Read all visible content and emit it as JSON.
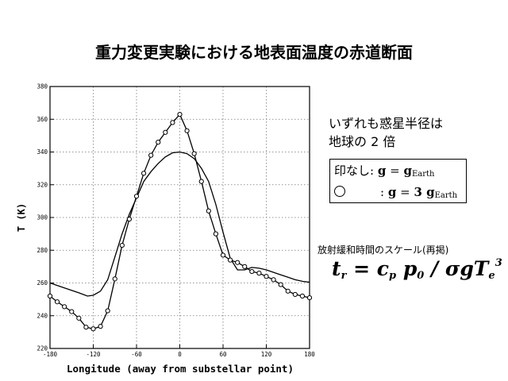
{
  "slide": {
    "title": "重力変更実験における地表面温度の赤道断面",
    "note_line1": "いずれも惑星半径は",
    "note_line2": "地球の 2 倍",
    "legend_row1_prefix": "印なし: ",
    "legend_row2_prefix": ": ",
    "legend_g": "g",
    "legend_eq": " = ",
    "legend_factor": "3 ",
    "legend_sub": "Earth",
    "timescale_caption": "放射緩和時間のスケール(再掲)",
    "formula_text": "t",
    "formula_sub_r": "r",
    "formula_eq": " = c",
    "formula_sub_p": "p",
    "formula_p": "p",
    "formula_sub_0": "0",
    "formula_rest": " / σgT",
    "formula_sub_e": "e",
    "formula_sup_3": "3"
  },
  "chart_data": {
    "type": "line",
    "title": "",
    "xlabel": "Longitude (away from substellar point)",
    "ylabel": "T (K)",
    "xlim": [
      -180,
      180
    ],
    "ylim": [
      220,
      380
    ],
    "xticks": [
      -180,
      -120,
      -60,
      0,
      60,
      120,
      180
    ],
    "yticks": [
      220,
      240,
      260,
      280,
      300,
      320,
      340,
      360,
      380
    ],
    "grid": true,
    "series": [
      {
        "name": "",
        "marker": "none",
        "x": [
          -180,
          -160,
          -140,
          -128,
          -120,
          -110,
          -100,
          -90,
          -80,
          -70,
          -60,
          -50,
          -40,
          -30,
          -20,
          -10,
          0,
          10,
          20,
          30,
          40,
          50,
          60,
          70,
          80,
          90,
          100,
          110,
          120,
          130,
          140,
          150,
          160,
          170,
          180
        ],
        "y": [
          260,
          257,
          254,
          252,
          252.5,
          255,
          262,
          276,
          290,
          302,
          312,
          322,
          328,
          333,
          337,
          339.5,
          340,
          339,
          336,
          330,
          322,
          308,
          291,
          275,
          268,
          268,
          269.5,
          269,
          268,
          266.5,
          265,
          263.5,
          262,
          261,
          260.5
        ]
      },
      {
        "name": "",
        "marker": "circle",
        "x": [
          -180,
          -170,
          -160,
          -150,
          -140,
          -130,
          -120,
          -110,
          -100,
          -90,
          -80,
          -70,
          -60,
          -50,
          -40,
          -30,
          -20,
          -10,
          0,
          10,
          20,
          30,
          40,
          50,
          60,
          70,
          80,
          90,
          100,
          110,
          120,
          130,
          140,
          150,
          160,
          170,
          180
        ],
        "y": [
          252,
          248.5,
          245.5,
          242.5,
          238.5,
          233,
          232,
          233.5,
          243,
          262.5,
          283,
          299,
          313,
          327,
          338,
          346,
          352,
          358,
          363,
          353,
          339,
          322,
          304,
          290,
          277,
          274,
          272.5,
          270,
          267,
          266,
          264,
          262,
          259,
          255,
          253,
          252,
          251
        ]
      }
    ]
  }
}
